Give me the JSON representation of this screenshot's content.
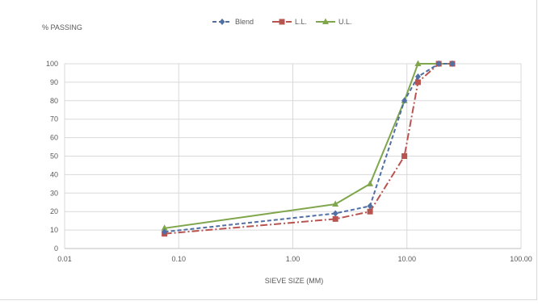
{
  "chart_data": {
    "type": "line",
    "title": "",
    "xlabel": "SIEVE SIZE (MM)",
    "ylabel": "% PASSING",
    "xscale": "log",
    "xlim": [
      0.01,
      100
    ],
    "ylim": [
      0,
      100
    ],
    "grid": true,
    "legend_position": "top-center",
    "x_ticks": [
      "0.01",
      "0.10",
      "1.00",
      "10.00",
      "100.00"
    ],
    "y_ticks": [
      "0",
      "10",
      "20",
      "30",
      "40",
      "50",
      "60",
      "70",
      "80",
      "90",
      "100"
    ],
    "series": [
      {
        "name": "Blend",
        "color": "#4f6fa5",
        "marker": "diamond",
        "line": "dashed",
        "x": [
          0.075,
          2.36,
          4.75,
          9.5,
          12.5,
          19,
          25
        ],
        "y": [
          9,
          19,
          23,
          80,
          93,
          100,
          100
        ]
      },
      {
        "name": "L.L.",
        "color": "#b85450",
        "marker": "square",
        "line": "dashdot",
        "x": [
          0.075,
          2.36,
          4.75,
          9.5,
          12.5,
          19,
          25
        ],
        "y": [
          8,
          16,
          20,
          50,
          90,
          100,
          100
        ]
      },
      {
        "name": "U.L.",
        "color": "#7fa64b",
        "marker": "triangle",
        "line": "solid",
        "x": [
          0.075,
          2.36,
          4.75,
          9.5,
          12.5,
          19,
          25
        ],
        "y": [
          11,
          24,
          35,
          80,
          100,
          100,
          100
        ]
      }
    ]
  }
}
